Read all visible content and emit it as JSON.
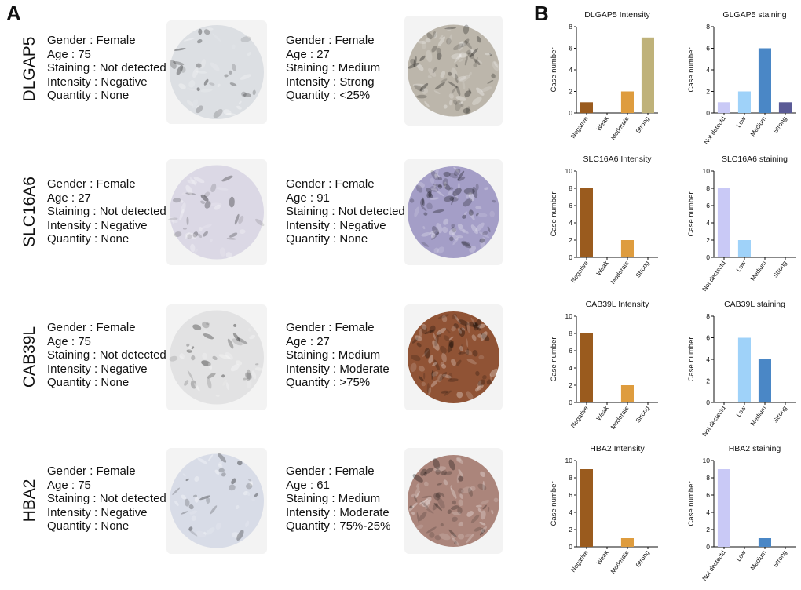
{
  "panel_labels": {
    "a": "A",
    "b": "B"
  },
  "rows": [
    {
      "gene": "DLGAP5",
      "samples": [
        {
          "gender": "Gender : Female",
          "age": "Age : 75",
          "staining": "Staining : Not detected",
          "intensity": "Intensity : Negative",
          "quantity": "Quantity : None",
          "tissue_color": "#c9ced6",
          "tissue_style": "normal-pale-blue"
        },
        {
          "gender": "Gender : Female",
          "age": "Age : 27",
          "staining": "Staining : Medium",
          "intensity": "Intensity : Strong",
          "quantity": "Quantity : <25%",
          "tissue_color": "#b8b2a6",
          "tissue_style": "tumor-grey-tan"
        }
      ]
    },
    {
      "gene": "SLC16A6",
      "samples": [
        {
          "gender": "Gender : Female",
          "age": "Age : 27",
          "staining": "Staining : Not detected",
          "intensity": "Intensity : Negative",
          "quantity": "Quantity : None",
          "tissue_color": "#c6c1d9",
          "tissue_style": "normal-lavender"
        },
        {
          "gender": "Gender : Female",
          "age": "Age : 91",
          "staining": "Staining : Not detected",
          "intensity": "Intensity : Negative",
          "quantity": "Quantity : None",
          "tissue_color": "#9f99c4",
          "tissue_style": "tumor-purple"
        }
      ]
    },
    {
      "gene": "CAB39L",
      "samples": [
        {
          "gender": "Gender : Female",
          "age": "Age : 75",
          "staining": "Staining : Not detected",
          "intensity": "Intensity : Negative",
          "quantity": "Quantity : None",
          "tissue_color": "#d3d3d6",
          "tissue_style": "normal-light-grey"
        },
        {
          "gender": "Gender : Female",
          "age": "Age : 27",
          "staining": "Staining : Medium",
          "intensity": "Intensity : Moderate",
          "quantity": "Quantity : >75%",
          "tissue_color": "#8a4a2a",
          "tissue_style": "tumor-brown"
        }
      ]
    },
    {
      "gene": "HBA2",
      "samples": [
        {
          "gender": "Gender : Female",
          "age": "Age : 75",
          "staining": "Staining : Not detected",
          "intensity": "Intensity : Negative",
          "quantity": "Quantity : None",
          "tissue_color": "#c1c8dc",
          "tissue_style": "normal-pale-blue"
        },
        {
          "gender": "Gender : Female",
          "age": "Age : 61",
          "staining": "Staining : Medium",
          "intensity": "Intensity : Moderate",
          "quantity": "Quantity : 75%-25%",
          "tissue_color": "#a77e74",
          "tissue_style": "tumor-mixed-brown"
        }
      ]
    }
  ],
  "chart_data": [
    {
      "type": "bar",
      "title": "DLGAP5 Intensity",
      "ylabel": "Case number",
      "xlabel": "",
      "categories": [
        "Negative",
        "Weak",
        "Moderate",
        "Strong"
      ],
      "values": [
        1,
        0,
        2,
        7
      ],
      "ylim": [
        0,
        8
      ],
      "yticks": [
        0,
        2,
        4,
        6,
        8
      ],
      "colors": [
        "#9a5b1e",
        "#b8823a",
        "#de9c3e",
        "#bfb27a"
      ]
    },
    {
      "type": "bar",
      "title": "GLGAP5 staining",
      "ylabel": "Case number",
      "xlabel": "",
      "categories": [
        "Not detectd",
        "Low",
        "Medium",
        "Strong"
      ],
      "values": [
        1,
        2,
        6,
        1
      ],
      "ylim": [
        0,
        8
      ],
      "yticks": [
        0,
        2,
        4,
        6,
        8
      ],
      "colors": [
        "#c9c9f6",
        "#9fd2f9",
        "#4a87c6",
        "#5a5a96"
      ]
    },
    {
      "type": "bar",
      "title": "SLC16A6 Intensity",
      "ylabel": "Case number",
      "xlabel": "",
      "categories": [
        "Negative",
        "Weak",
        "Moderate",
        "Strong"
      ],
      "values": [
        8,
        0,
        2,
        0
      ],
      "ylim": [
        0,
        10
      ],
      "yticks": [
        0,
        2,
        4,
        6,
        8,
        10
      ],
      "colors": [
        "#9a5b1e",
        "#b8823a",
        "#de9c3e",
        "#bfb27a"
      ]
    },
    {
      "type": "bar",
      "title": "SLC16A6 staining",
      "ylabel": "Case number",
      "xlabel": "",
      "categories": [
        "Not dectectd",
        "Low",
        "Medium",
        "Strong"
      ],
      "values": [
        8,
        2,
        0,
        0
      ],
      "ylim": [
        0,
        10
      ],
      "yticks": [
        0,
        2,
        4,
        6,
        8,
        10
      ],
      "colors": [
        "#c9c9f6",
        "#9fd2f9",
        "#4a87c6",
        "#5a5a96"
      ]
    },
    {
      "type": "bar",
      "title": "CAB39L Intensity",
      "ylabel": "Case number",
      "xlabel": "",
      "categories": [
        "Negative",
        "Weak",
        "Moderate",
        "Strong"
      ],
      "values": [
        8,
        0,
        2,
        0
      ],
      "ylim": [
        0,
        10
      ],
      "yticks": [
        0,
        2,
        4,
        6,
        8,
        10
      ],
      "colors": [
        "#9a5b1e",
        "#b8823a",
        "#de9c3e",
        "#bfb27a"
      ]
    },
    {
      "type": "bar",
      "title": "CAB39L staining",
      "ylabel": "Case number",
      "xlabel": "",
      "categories": [
        "Not dectectd",
        "Low",
        "Medium",
        "Strong"
      ],
      "values": [
        0,
        6,
        4,
        0
      ],
      "ylim": [
        0,
        8
      ],
      "yticks": [
        0,
        2,
        4,
        6,
        8
      ],
      "colors": [
        "#c9c9f6",
        "#9fd2f9",
        "#4a87c6",
        "#5a5a96"
      ]
    },
    {
      "type": "bar",
      "title": "HBA2 Intensity",
      "ylabel": "Case number",
      "xlabel": "",
      "categories": [
        "Negative",
        "Weak",
        "Moderate",
        "Strong"
      ],
      "values": [
        9,
        0,
        1,
        0
      ],
      "ylim": [
        0,
        10
      ],
      "yticks": [
        0,
        2,
        4,
        6,
        8,
        10
      ],
      "colors": [
        "#9a5b1e",
        "#b8823a",
        "#de9c3e",
        "#bfb27a"
      ]
    },
    {
      "type": "bar",
      "title": "HBA2 staining",
      "ylabel": "Case number",
      "xlabel": "",
      "categories": [
        "Not dectectd",
        "Low",
        "Medium",
        "Strong"
      ],
      "values": [
        9,
        0,
        1,
        0
      ],
      "ylim": [
        0,
        10
      ],
      "yticks": [
        0,
        2,
        4,
        6,
        8,
        10
      ],
      "colors": [
        "#c9c9f6",
        "#9fd2f9",
        "#4a87c6",
        "#5a5a96"
      ]
    }
  ]
}
